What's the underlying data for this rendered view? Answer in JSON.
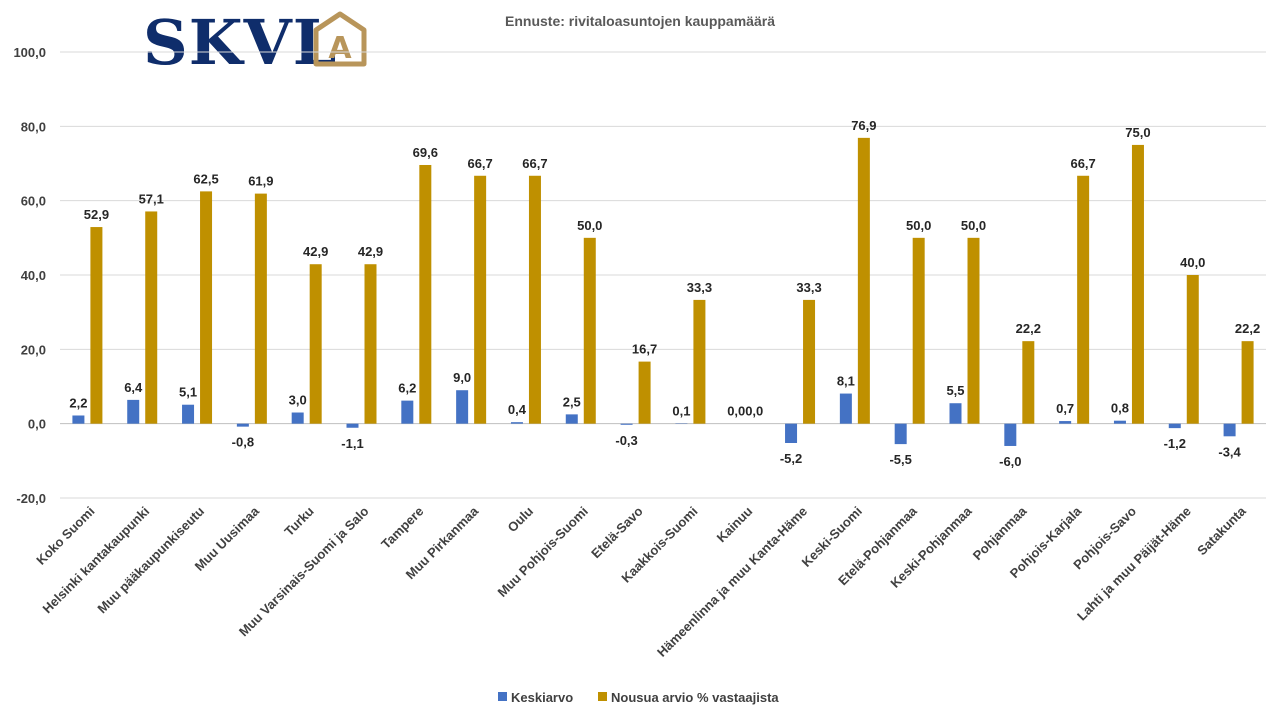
{
  "logo": {
    "text": "SKVL",
    "mark": "A",
    "color": "#0f2d6b",
    "accent": "#b8955a"
  },
  "chart_data": {
    "type": "bar",
    "title": "Ennuste: rivitaloasuntojen kauppamäärä",
    "xlabel": "",
    "ylabel": "",
    "ylim": [
      -20,
      100
    ],
    "yticks": [
      "-20,0",
      "0,0",
      "20,0",
      "40,0",
      "60,0",
      "80,0",
      "100,0"
    ],
    "ytick_values": [
      -20,
      0,
      20,
      40,
      60,
      80,
      100
    ],
    "grid": true,
    "legend_position": "bottom",
    "categories": [
      "Koko Suomi",
      "Helsinki kantakaupunki",
      "Muu pääkaupunkiseutu",
      "Muu Uusimaa",
      "Turku",
      "Muu Varsinais-Suomi ja Salo",
      "Tampere",
      "Muu Pirkanmaa",
      "Oulu",
      "Muu Pohjois-Suomi",
      "Etelä-Savo",
      "Kaakkois-Suomi",
      "Kainuu",
      "Hämeenlinna ja muu Kanta-Häme",
      "Keski-Suomi",
      "Etelä-Pohjanmaa",
      "Keski-Pohjanmaa",
      "Pohjanmaa",
      "Pohjois-Karjala",
      "Pohjois-Savo",
      "Lahti ja muu Päijät-Häme",
      "Satakunta"
    ],
    "series": [
      {
        "name": "Keskiarvo",
        "color": "#4472c4",
        "values": [
          2.2,
          6.4,
          5.1,
          -0.8,
          3.0,
          -1.1,
          6.2,
          9.0,
          0.4,
          2.5,
          -0.3,
          0.1,
          0.0,
          -5.2,
          8.1,
          -5.5,
          5.5,
          -6.0,
          0.7,
          0.8,
          -1.2,
          -3.4
        ],
        "labels": [
          "2,2",
          "6,4",
          "5,1",
          "-0,8",
          "3,0",
          "-1,1",
          "6,2",
          "9,0",
          "0,4",
          "2,5",
          "-0,3",
          "0,1",
          "0,0",
          "-5,2",
          "8,1",
          "-5,5",
          "5,5",
          "-6,0",
          "0,7",
          "0,8",
          "-1,2",
          "-3,4"
        ]
      },
      {
        "name": "Nousua arvio % vastaajista",
        "color": "#bf9000",
        "values": [
          52.9,
          57.1,
          62.5,
          61.9,
          42.9,
          42.9,
          69.6,
          66.7,
          66.7,
          50.0,
          16.7,
          33.3,
          0.0,
          33.3,
          76.9,
          50.0,
          50.0,
          22.2,
          66.7,
          75.0,
          40.0,
          22.2
        ],
        "labels": [
          "52,9",
          "57,1",
          "62,5",
          "61,9",
          "42,9",
          "42,9",
          "69,6",
          "66,7",
          "66,7",
          "50,0",
          "16,7",
          "33,3",
          "0,0",
          "33,3",
          "76,9",
          "50,0",
          "50,0",
          "22,2",
          "66,7",
          "75,0",
          "40,0",
          "22,2"
        ]
      }
    ]
  }
}
